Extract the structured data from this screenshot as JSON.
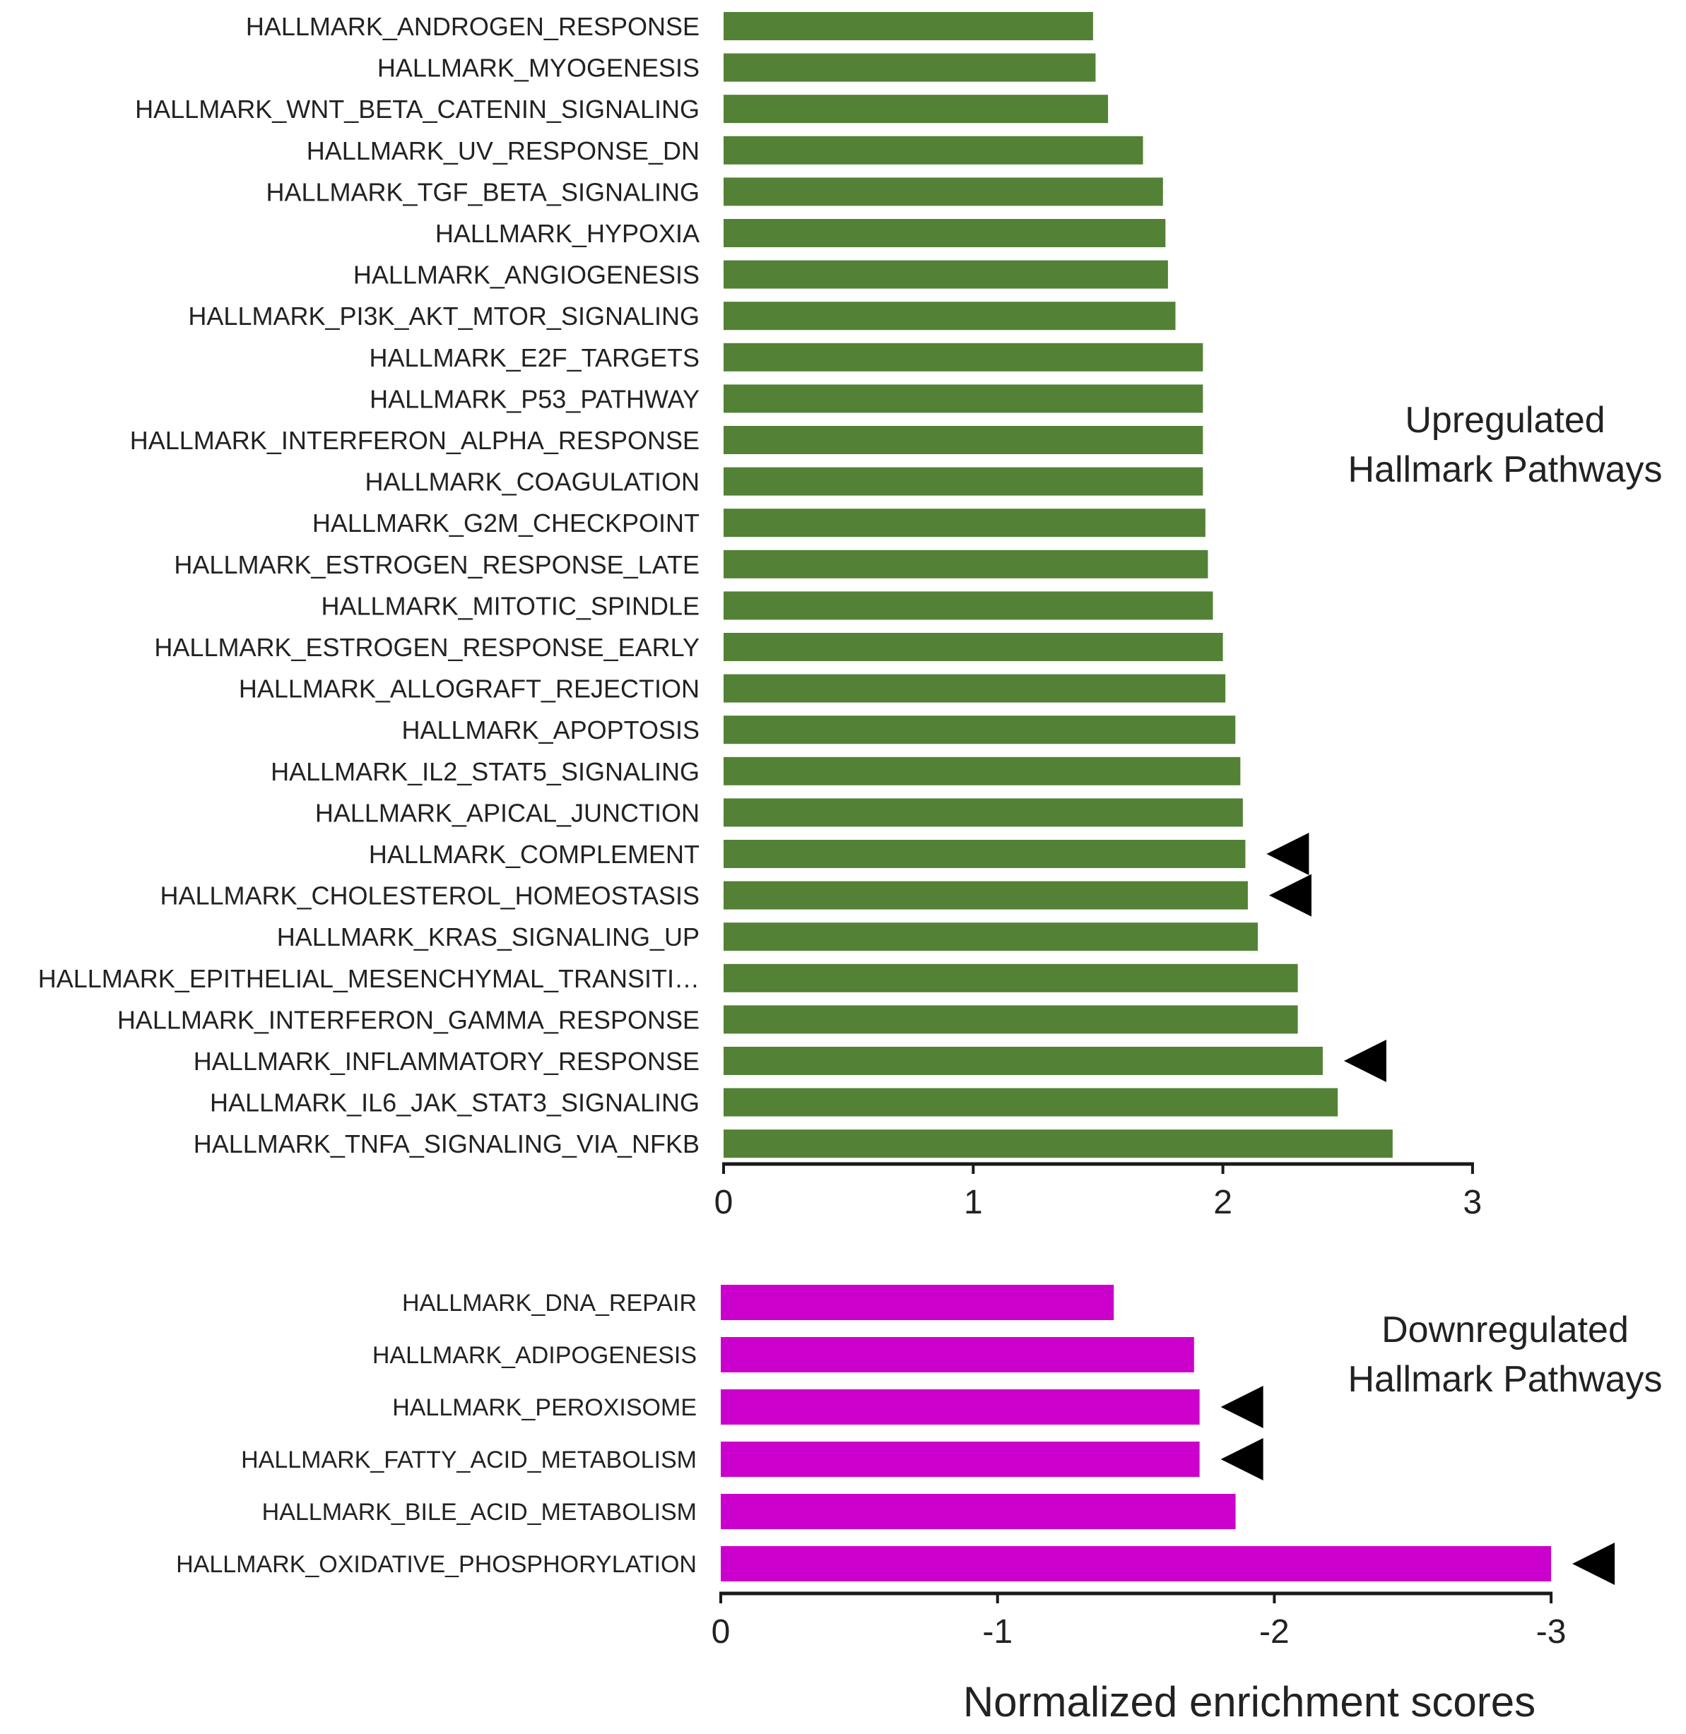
{
  "chart_data": [
    {
      "type": "bar",
      "orientation": "horizontal",
      "title": "Upregulated Hallmark Pathways",
      "title_lines": [
        "Upregulated",
        "Hallmark Pathways"
      ],
      "xlabel": "",
      "ylabel": "",
      "xlim": [
        0,
        3
      ],
      "ticks": [
        0,
        1,
        2,
        3
      ],
      "tick_labels": [
        "0",
        "1",
        "2",
        "3"
      ],
      "bar_color": "#538135",
      "categories": [
        "HALLMARK_ANDROGEN_RESPONSE",
        "HALLMARK_MYOGENESIS",
        "HALLMARK_WNT_BETA_CATENIN_SIGNALING",
        "HALLMARK_UV_RESPONSE_DN",
        "HALLMARK_TGF_BETA_SIGNALING",
        "HALLMARK_HYPOXIA",
        "HALLMARK_ANGIOGENESIS",
        "HALLMARK_PI3K_AKT_MTOR_SIGNALING",
        "HALLMARK_E2F_TARGETS",
        "HALLMARK_P53_PATHWAY",
        "HALLMARK_INTERFERON_ALPHA_RESPONSE",
        "HALLMARK_COAGULATION",
        "HALLMARK_G2M_CHECKPOINT",
        "HALLMARK_ESTROGEN_RESPONSE_LATE",
        "HALLMARK_MITOTIC_SPINDLE",
        "HALLMARK_ESTROGEN_RESPONSE_EARLY",
        "HALLMARK_ALLOGRAFT_REJECTION",
        "HALLMARK_APOPTOSIS",
        "HALLMARK_IL2_STAT5_SIGNALING",
        "HALLMARK_APICAL_JUNCTION",
        "HALLMARK_COMPLEMENT",
        "HALLMARK_CHOLESTEROL_HOMEOSTASIS",
        "HALLMARK_KRAS_SIGNALING_UP",
        "HALLMARK_EPITHELIAL_MESENCHYMAL_TRANSITI…",
        "HALLMARK_INTERFERON_GAMMA_RESPONSE",
        "HALLMARK_INFLAMMATORY_RESPONSE",
        "HALLMARK_IL6_JAK_STAT3_SIGNALING",
        "HALLMARK_TNFA_SIGNALING_VIA_NFKB"
      ],
      "values": [
        1.48,
        1.49,
        1.54,
        1.68,
        1.76,
        1.77,
        1.78,
        1.81,
        1.92,
        1.92,
        1.92,
        1.92,
        1.93,
        1.94,
        1.96,
        2.0,
        2.01,
        2.05,
        2.07,
        2.08,
        2.09,
        2.1,
        2.14,
        2.3,
        2.3,
        2.4,
        2.46,
        2.68
      ],
      "highlighted": [
        "HALLMARK_COMPLEMENT",
        "HALLMARK_CHOLESTEROL_HOMEOSTASIS",
        "HALLMARK_INFLAMMATORY_RESPONSE"
      ]
    },
    {
      "type": "bar",
      "orientation": "horizontal",
      "title": "Downregulated Hallmark Pathways",
      "title_lines": [
        "Downregulated",
        "Hallmark Pathways"
      ],
      "xlabel": "Normalized enrichment scores",
      "ylabel": "",
      "xlim": [
        0,
        -3
      ],
      "ticks": [
        0,
        -1,
        -2,
        -3
      ],
      "tick_labels": [
        "0",
        "-1",
        "-2",
        "-3"
      ],
      "bar_color": "#cc00cc",
      "categories": [
        "HALLMARK_DNA_REPAIR",
        "HALLMARK_ADIPOGENESIS",
        "HALLMARK_PEROXISOME",
        "HALLMARK_FATTY_ACID_METABOLISM",
        "HALLMARK_BILE_ACID_METABOLISM",
        "HALLMARK_OXIDATIVE_PHOSPHORYLATION"
      ],
      "values": [
        -1.42,
        -1.71,
        -1.73,
        -1.73,
        -1.86,
        -3.0
      ],
      "highlighted": [
        "HALLMARK_PEROXISOME",
        "HALLMARK_FATTY_ACID_METABOLISM",
        "HALLMARK_OXIDATIVE_PHOSPHORYLATION"
      ]
    }
  ],
  "colors": {
    "up_bar": "#538135",
    "down_bar": "#cc00cc",
    "axis": "#1a1a1a",
    "text": "#222222",
    "marker": "#000000"
  }
}
